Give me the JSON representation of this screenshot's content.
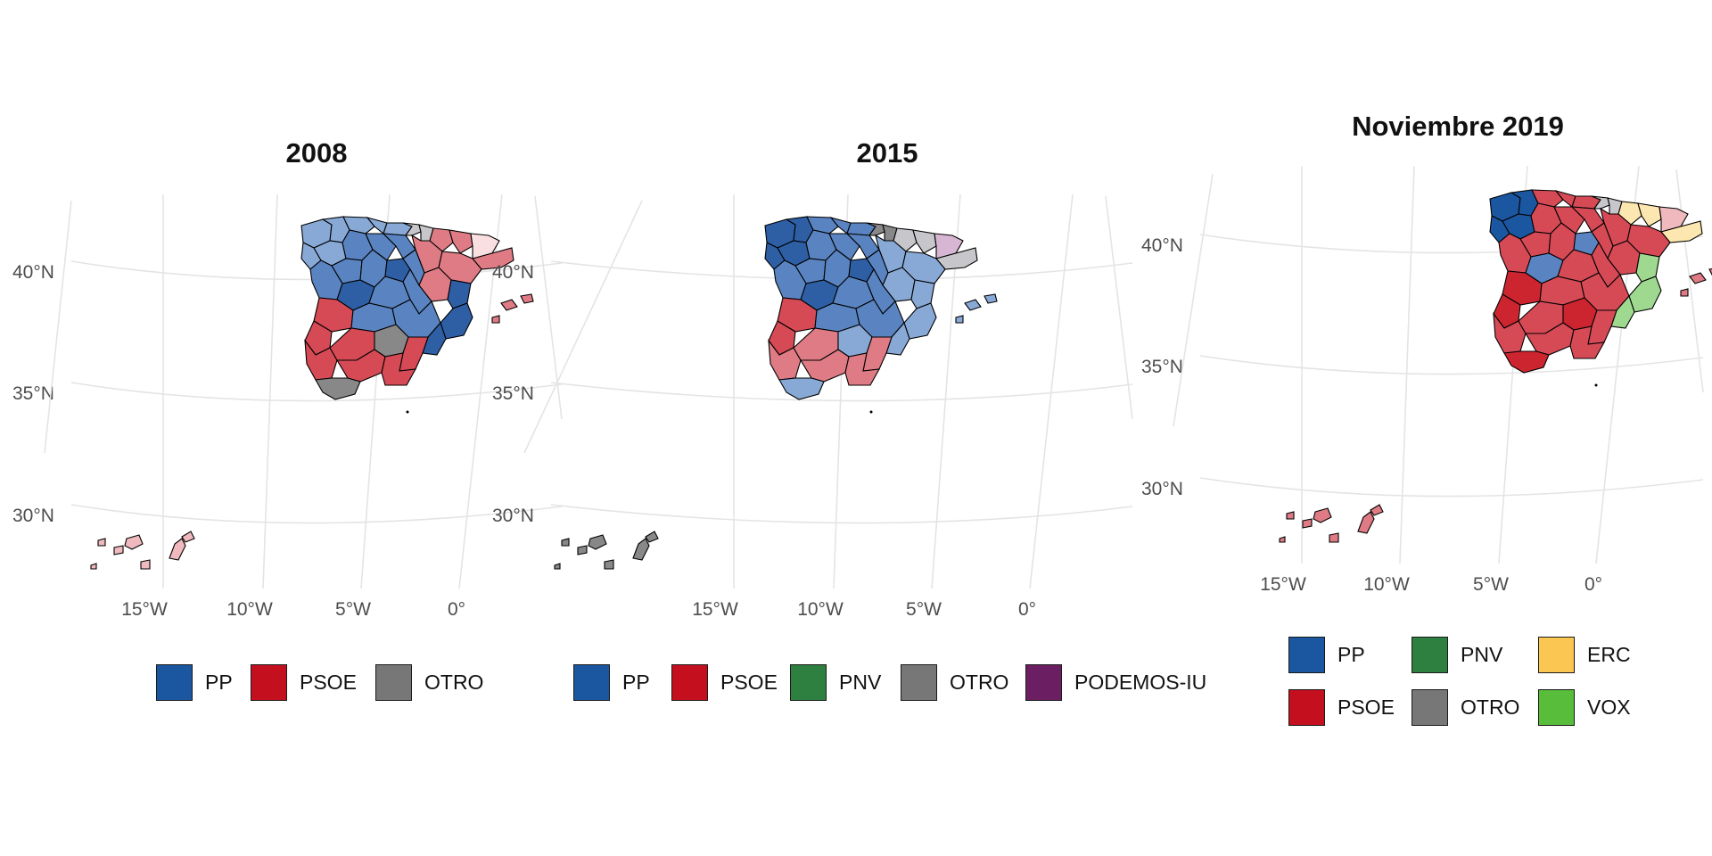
{
  "colors": {
    "PP": "#1b57a0",
    "PSOE": "#c40f1f",
    "PNV": "#2e8040",
    "OTRO": "#777777",
    "PODEMOS-IU": "#6b1f62",
    "ERC": "#fcc652",
    "VOX": "#58bd3a",
    "pp_1": "#2e5fa5",
    "pp_2": "#5a84c1",
    "pp_3": "#88a9d6",
    "pp_4": "#b9cbe7",
    "psoe_1": "#cd2530",
    "psoe_2": "#d64a56",
    "psoe_3": "#df7b84",
    "psoe_4": "#f0b9bd",
    "psoe_5": "#f9dfe0",
    "otro_1": "#888888",
    "otro_2": "#c7c7cb",
    "pnv_2": "#5ea86a",
    "pod_2": "#d6b6d2",
    "erc_2": "#fde7b0",
    "vox_2": "#9fd98f"
  },
  "panels": [
    {
      "title": "2008",
      "lat_labels": [
        "40°N",
        "35°N",
        "30°N"
      ],
      "lon_labels": [
        "15°W",
        "10°W",
        "5°W",
        "0°"
      ],
      "legend": [
        {
          "label": "PP",
          "color": "PP"
        },
        {
          "label": "PSOE",
          "color": "PSOE"
        },
        {
          "label": "OTRO",
          "color": "OTRO"
        }
      ],
      "scheme": {
        "north": "pp_3",
        "nw": "pp_3",
        "basque": "otro_2",
        "catalonia": "psoe_3",
        "catalonia_e": "psoe_5",
        "castile": "pp_2",
        "madrid": "pp_1",
        "aragon": "psoe_3",
        "valencia": "pp_1",
        "extremadura": "psoe_2",
        "andalucia": "psoe_2",
        "andalucia_e": "otro_1",
        "balearic": "psoe_3",
        "canary": "psoe_4"
      }
    },
    {
      "title": "2015",
      "lat_labels": [
        "40°N",
        "35°N",
        "30°N"
      ],
      "lon_labels": [
        "15°W",
        "10°W",
        "5°W",
        "0°"
      ],
      "legend": [
        {
          "label": "PP",
          "color": "PP"
        },
        {
          "label": "PSOE",
          "color": "PSOE"
        },
        {
          "label": "PNV",
          "color": "PNV"
        },
        {
          "label": "OTRO",
          "color": "OTRO"
        },
        {
          "label": "PODEMOS-IU",
          "color": "PODEMOS-IU"
        }
      ],
      "scheme": {
        "north": "pp_2",
        "nw": "pp_1",
        "basque": "otro_1",
        "catalonia": "otro_2",
        "catalonia_e": "pod_2",
        "castile": "pp_2",
        "madrid": "pp_1",
        "aragon": "pp_3",
        "valencia": "pp_3",
        "extremadura": "psoe_2",
        "andalucia": "psoe_3",
        "andalucia_e": "pp_3",
        "balearic": "pp_3",
        "canary": "otro_1"
      }
    },
    {
      "title": "Noviembre 2019",
      "lat_labels": [
        "40°N",
        "35°N",
        "30°N"
      ],
      "lon_labels": [
        "15°W",
        "10°W",
        "5°W",
        "0°"
      ],
      "legend": [
        {
          "label": "PP",
          "color": "PP"
        },
        {
          "label": "PNV",
          "color": "PNV"
        },
        {
          "label": "ERC",
          "color": "ERC"
        },
        {
          "label": "PSOE",
          "color": "PSOE"
        },
        {
          "label": "OTRO",
          "color": "OTRO"
        },
        {
          "label": "VOX",
          "color": "VOX"
        }
      ],
      "scheme": {
        "north": "psoe_2",
        "nw": "PP",
        "basque": "otro_2",
        "catalonia": "erc_2",
        "catalonia_e": "psoe_4",
        "castile": "psoe_2",
        "madrid": "pp_2",
        "aragon": "psoe_2",
        "valencia": "vox_2",
        "extremadura": "psoe_1",
        "andalucia": "psoe_2",
        "andalucia_e": "psoe_1",
        "balearic": "psoe_3",
        "canary": "psoe_3"
      }
    }
  ]
}
